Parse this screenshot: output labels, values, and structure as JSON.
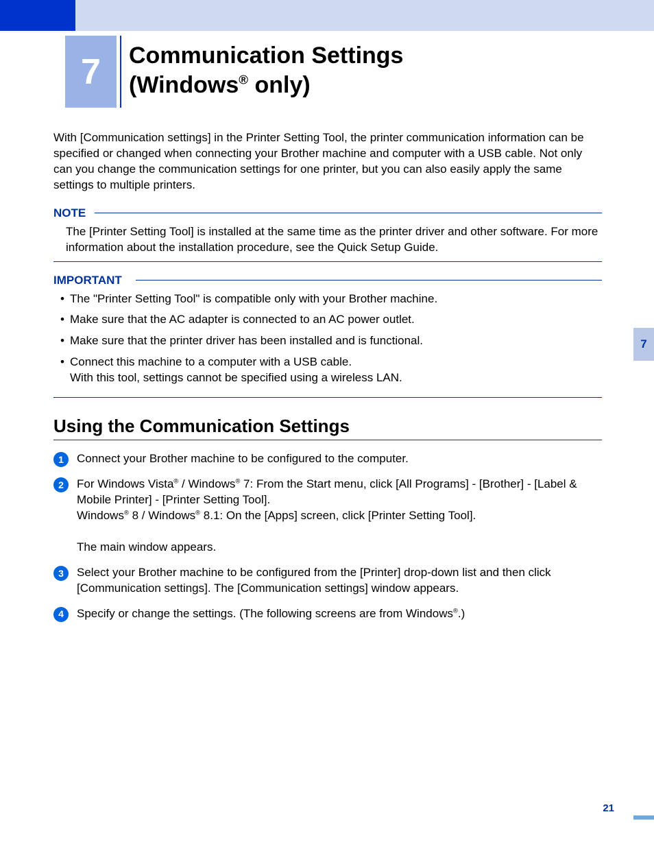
{
  "colors": {
    "accent_dark": "#0033cc",
    "accent_light": "#99b3e6",
    "header_band": "#cfd9f2",
    "callout": "#003399",
    "step_bg": "#0066dd",
    "sidetab_bg": "#b8c8e6"
  },
  "chapter": {
    "number": "7"
  },
  "title": {
    "line1": "Communication Settings",
    "line2_pre": "(Windows",
    "line2_post": " only)"
  },
  "intro": "With [Communication settings] in the Printer Setting Tool, the printer communication information can be specified or changed when connecting your Brother machine and computer with a USB cable. Not only can you change the communication settings for one printer, but you can also easily apply the same settings to multiple printers.",
  "note": {
    "label": "NOTE",
    "body": "The [Printer Setting Tool] is installed at the same time as the printer driver and other software. For more information about the installation procedure, see the Quick Setup Guide."
  },
  "important": {
    "label": "IMPORTANT",
    "items": [
      "The \"Printer Setting Tool\" is compatible only with your Brother machine.",
      "Make sure that the AC adapter is connected to an AC power outlet.",
      "Make sure that the printer driver has been installed and is functional.",
      "Connect this machine to a computer with a USB cable.\nWith this tool, settings cannot be specified using a wireless LAN."
    ]
  },
  "section_heading": "Using the Communication Settings",
  "steps": {
    "s1": "Connect your Brother machine to be configured to the computer.",
    "s2": {
      "a": "For Windows Vista",
      "b": " / Windows",
      "c": " 7: From the Start menu, click [All Programs] - [Brother] - [Label & Mobile Printer] - [Printer Setting Tool].",
      "d": "Windows",
      "e": " 8 / Windows",
      "f": " 8.1: On the [Apps] screen, click [Printer Setting Tool].",
      "g": "The main window appears."
    },
    "s3": "Select your Brother machine to be configured from the [Printer] drop-down list and then click [Communication settings]. The [Communication settings] window appears.",
    "s4": {
      "a": "Specify or change the settings. (The following screens are from Windows",
      "b": ".)"
    }
  },
  "side_tab": "7",
  "page_number": "21"
}
